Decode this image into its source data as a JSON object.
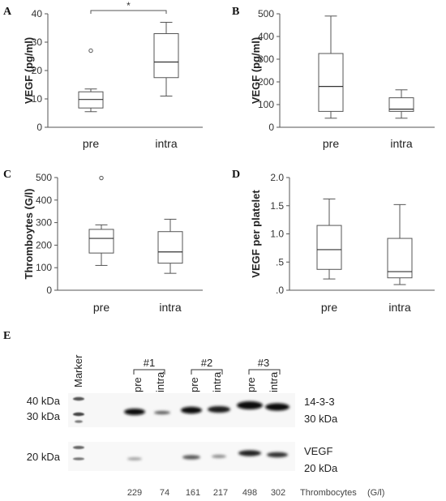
{
  "chart_data": [
    {
      "panel": "A",
      "type": "box",
      "ylabel": "VEGF (pg/ml)",
      "ylim": [
        0,
        40
      ],
      "yticks": [
        "0",
        "10",
        "20",
        "30",
        "40"
      ],
      "categories": [
        "pre",
        "intra"
      ],
      "boxes": [
        {
          "min": 5.5,
          "q1": 6.8,
          "median": 9.8,
          "q3": 12.5,
          "max": 13.5,
          "outliers": [
            27
          ]
        },
        {
          "min": 11,
          "q1": 17.5,
          "median": 23,
          "q3": 33,
          "max": 37,
          "outliers": []
        }
      ],
      "significance": "*"
    },
    {
      "panel": "B",
      "type": "box",
      "ylabel": "VEGF (pg/ml)",
      "ylim": [
        0,
        500
      ],
      "yticks": [
        "0",
        "100",
        "200",
        "300",
        "400",
        "500"
      ],
      "categories": [
        "pre",
        "intra"
      ],
      "boxes": [
        {
          "min": 40,
          "q1": 70,
          "median": 180,
          "q3": 325,
          "max": 490,
          "outliers": []
        },
        {
          "min": 40,
          "q1": 70,
          "median": 80,
          "q3": 130,
          "max": 165,
          "outliers": []
        }
      ]
    },
    {
      "panel": "C",
      "type": "box",
      "ylabel": "Thromboytes (G/l)",
      "ylim": [
        0,
        500
      ],
      "yticks": [
        "0",
        "100",
        "200",
        "300",
        "400",
        "500"
      ],
      "categories": [
        "pre",
        "intra"
      ],
      "boxes": [
        {
          "min": 110,
          "q1": 165,
          "median": 230,
          "q3": 270,
          "max": 290,
          "outliers": [
            498
          ]
        },
        {
          "min": 75,
          "q1": 120,
          "median": 170,
          "q3": 260,
          "max": 315,
          "outliers": []
        }
      ]
    },
    {
      "panel": "D",
      "type": "box",
      "ylabel": "VEGF per platelet",
      "ylim": [
        0,
        2
      ],
      "yticks": [
        ".0",
        ".5",
        "1.0",
        "1.5",
        "2.0"
      ],
      "categories": [
        "pre",
        "intra"
      ],
      "boxes": [
        {
          "min": 0.2,
          "q1": 0.37,
          "median": 0.72,
          "q3": 1.15,
          "max": 1.62,
          "outliers": []
        },
        {
          "min": 0.1,
          "q1": 0.22,
          "median": 0.33,
          "q3": 0.92,
          "max": 1.52,
          "outliers": []
        }
      ]
    }
  ],
  "western_blot": {
    "panel": "E",
    "marker_label": "Marker",
    "groups": [
      "#1",
      "#2",
      "#3"
    ],
    "lanes": [
      "pre",
      "intra",
      "pre",
      "intra",
      "pre",
      "intra"
    ],
    "mw_left_top": [
      "40 kDa",
      "30 kDa"
    ],
    "mw_left_bottom": "20 kDa",
    "band_top_name": "14-3-3",
    "band_top_kda": "30 kDa",
    "band_bottom_name": "VEGF",
    "band_bottom_kda": "20 kDa",
    "thrombocyte_counts": [
      "229",
      "74",
      "161",
      "217",
      "498",
      "302"
    ],
    "thrombocyte_label": "Thrombocytes",
    "thrombocyte_unit": "(G/l)"
  }
}
